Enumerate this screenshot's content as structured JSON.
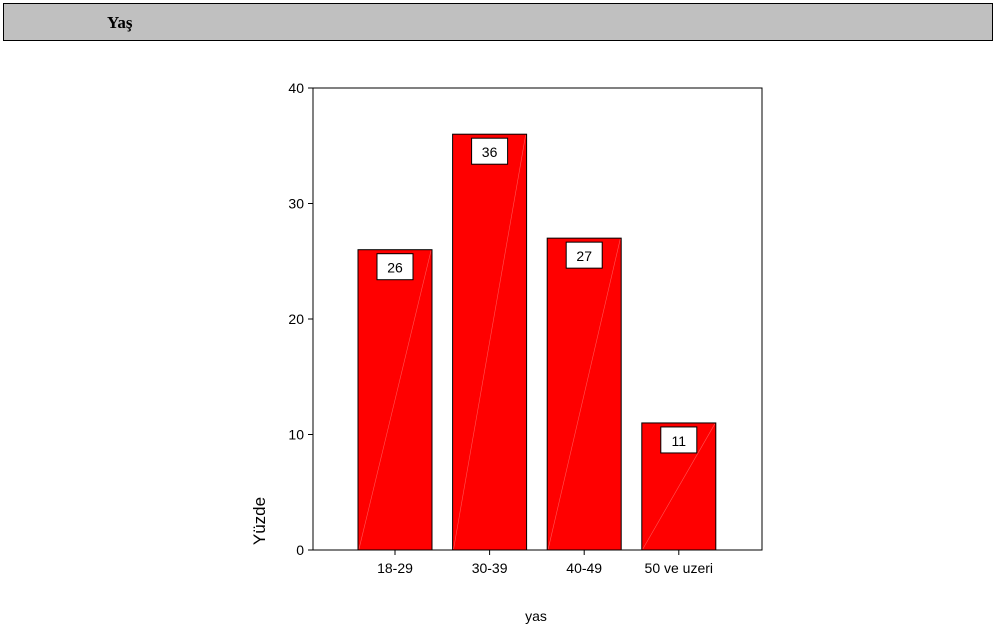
{
  "header": {
    "title": "Yaş"
  },
  "colors": {
    "bar_fill": "#ff0000",
    "bar_stroke": "#000000",
    "header_bg": "#c0c0c0"
  },
  "chart_data": {
    "type": "bar",
    "categories": [
      "18-29",
      "30-39",
      "40-49",
      "50 ve uzeri"
    ],
    "values": [
      26,
      36,
      27,
      11
    ],
    "data_labels": [
      "26",
      "36",
      "27",
      "11"
    ],
    "xlabel": "yas",
    "ylabel": "Yüzde",
    "ylim": [
      0,
      40
    ],
    "yticks": [
      0,
      10,
      20,
      30,
      40
    ],
    "grid": false,
    "legend": "none"
  }
}
